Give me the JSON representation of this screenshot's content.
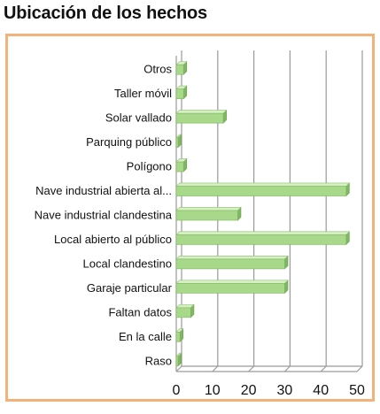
{
  "chart_data": {
    "type": "bar",
    "orientation": "horizontal",
    "title": "Ubicación de los hechos",
    "categories": [
      "Otros",
      "Taller móvil",
      "Solar vallado",
      "Parquing público",
      "Polígono",
      "Nave industrial abierta al...",
      "Nave industrial clandestina",
      "Local abierto al público",
      "Local clandestino",
      "Garaje particular",
      "Faltan datos",
      "En la calle",
      "Raso"
    ],
    "values": [
      2,
      2,
      13,
      0.5,
      2,
      47,
      17,
      47,
      30,
      30,
      4,
      1,
      0.5
    ],
    "xlim": [
      0,
      50
    ],
    "xticks": [
      0,
      10,
      20,
      30,
      40,
      50
    ],
    "grid": "vertical",
    "legend": "none",
    "colors": {
      "bar_fill": "#a8d88a",
      "bar_top": "#d6f0c4",
      "bar_side": "#7fb762",
      "frame": "#f2b27a",
      "grid": "#9a9a9a"
    }
  }
}
